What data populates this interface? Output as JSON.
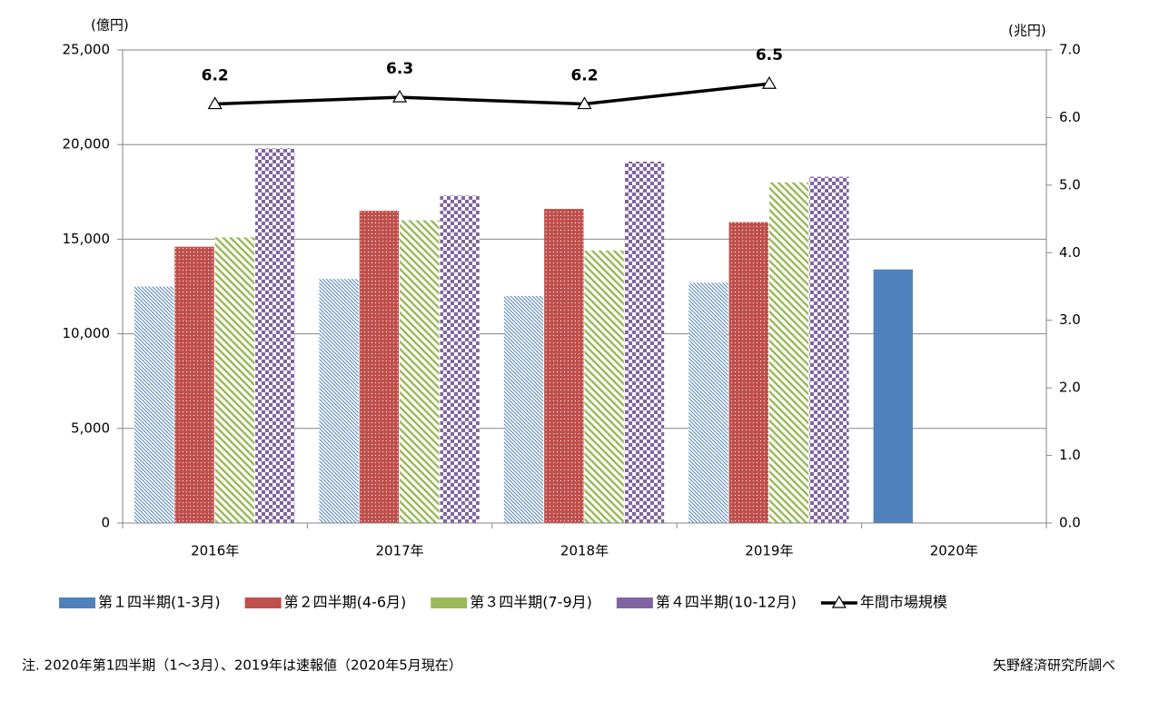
{
  "chart_data": {
    "type": "bar",
    "categories": [
      "2016年",
      "2017年",
      "2018年",
      "2019年",
      "2020年"
    ],
    "series": [
      {
        "name": "第１四半期(1-3月)",
        "color": "#4f81bd",
        "patterns": [
          "hatch-thin",
          "hatch-thin",
          "hatch-thin",
          "hatch-thin",
          "solid"
        ],
        "values": [
          12500,
          12900,
          12000,
          12700,
          13400
        ]
      },
      {
        "name": "第２四半期(4-6月)",
        "color": "#c0504d",
        "pattern": "dots",
        "values": [
          14600,
          16500,
          16600,
          15900,
          null
        ]
      },
      {
        "name": "第３四半期(7-9月)",
        "color": "#9bbb59",
        "pattern": "hatch-wide",
        "values": [
          15100,
          16000,
          14400,
          18000,
          null
        ]
      },
      {
        "name": "第４四半期(10-12月)",
        "color": "#8064a2",
        "pattern": "checker",
        "values": [
          19800,
          17300,
          19100,
          18300,
          null
        ]
      },
      {
        "name": "年間市場規模",
        "type": "line",
        "axis": "y2",
        "color": "#000000",
        "values": [
          6.2,
          6.3,
          6.2,
          6.5,
          null
        ]
      }
    ],
    "ylabel": "(億円)",
    "y2label": "(兆円)",
    "ylim": [
      0,
      25000
    ],
    "yticks": [
      0,
      {
        "value": 5000,
        "label": "5,000"
      },
      {
        "value": 10000,
        "label": "10,000"
      },
      {
        "value": 15000,
        "label": "15,000"
      },
      {
        "value": 20000,
        "label": "20,000"
      },
      {
        "value": 25000,
        "label": "25,000"
      }
    ],
    "y2lim": [
      0,
      7
    ],
    "y2ticks": [
      {
        "value": 0,
        "label": "0.0"
      },
      {
        "value": 1,
        "label": "1.0"
      },
      {
        "value": 2,
        "label": "2.0"
      },
      {
        "value": 3,
        "label": "3.0"
      },
      {
        "value": 4,
        "label": "4.0"
      },
      {
        "value": 5,
        "label": "5.0"
      },
      {
        "value": 6,
        "label": "6.0"
      },
      {
        "value": 7,
        "label": "7.0"
      }
    ],
    "grid": true,
    "legend": "bottom",
    "note": "注. 2020年第1四半期（1～3月）、2019年は速報値（2020年5月現在）",
    "source": "矢野経済研究所調べ"
  }
}
